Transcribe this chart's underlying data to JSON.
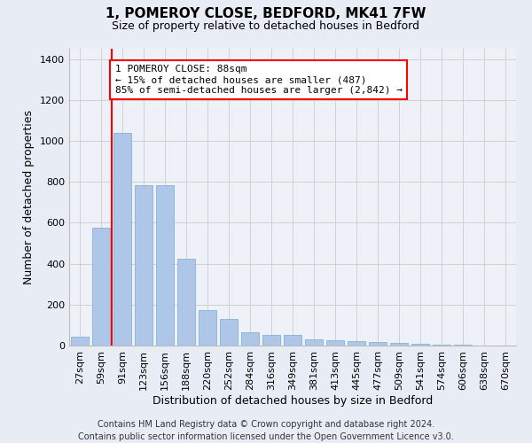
{
  "title": "1, POMEROY CLOSE, BEDFORD, MK41 7FW",
  "subtitle": "Size of property relative to detached houses in Bedford",
  "xlabel": "Distribution of detached houses by size in Bedford",
  "ylabel": "Number of detached properties",
  "categories": [
    "27sqm",
    "59sqm",
    "91sqm",
    "123sqm",
    "156sqm",
    "188sqm",
    "220sqm",
    "252sqm",
    "284sqm",
    "316sqm",
    "349sqm",
    "381sqm",
    "413sqm",
    "445sqm",
    "477sqm",
    "509sqm",
    "541sqm",
    "574sqm",
    "606sqm",
    "638sqm",
    "670sqm"
  ],
  "values": [
    45,
    575,
    1040,
    785,
    785,
    425,
    175,
    130,
    65,
    50,
    50,
    30,
    28,
    22,
    18,
    12,
    8,
    5,
    3,
    2,
    1
  ],
  "bar_color": "#aec6e8",
  "bar_edge_color": "#7aaad0",
  "vline_color": "red",
  "annotation_text": "1 POMEROY CLOSE: 88sqm\n← 15% of detached houses are smaller (487)\n85% of semi-detached houses are larger (2,842) →",
  "annotation_box_color": "white",
  "annotation_box_edge_color": "red",
  "ylim": [
    0,
    1450
  ],
  "yticks": [
    0,
    200,
    400,
    600,
    800,
    1000,
    1200,
    1400
  ],
  "grid_color": "#d0d0d0",
  "bg_color": "#e8edf5",
  "plot_bg_color": "#eef2f8",
  "footer": "Contains HM Land Registry data © Crown copyright and database right 2024.\nContains public sector information licensed under the Open Government Licence v3.0.",
  "title_fontsize": 11,
  "subtitle_fontsize": 9,
  "label_fontsize": 9,
  "tick_fontsize": 8,
  "footer_fontsize": 7,
  "annotation_fontsize": 8
}
